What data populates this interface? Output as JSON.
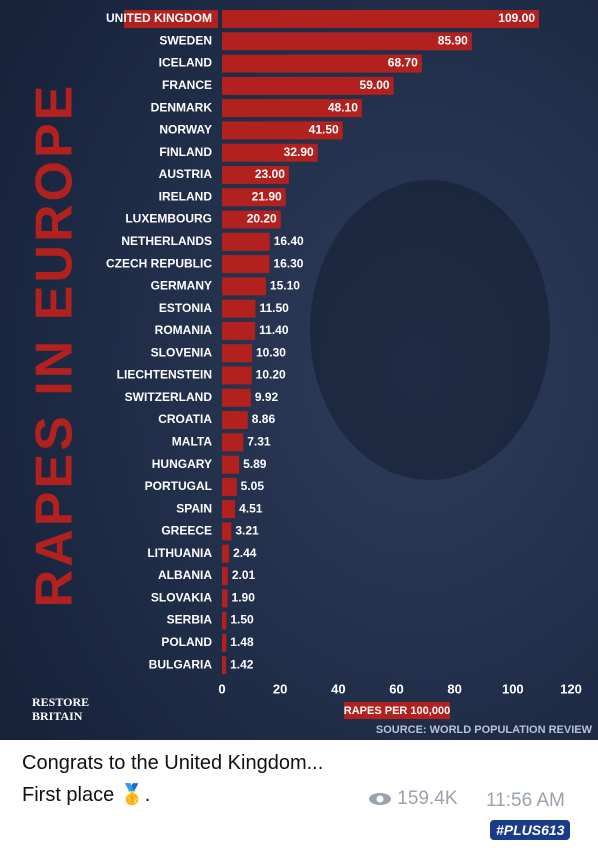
{
  "chart_data": {
    "type": "barh",
    "title": "RAPES IN EUROPE",
    "categories": [
      "UNITED KINGDOM",
      "SWEDEN",
      "ICELAND",
      "FRANCE",
      "DENMARK",
      "NORWAY",
      "FINLAND",
      "AUSTRIA",
      "IRELAND",
      "LUXEMBOURG",
      "NETHERLANDS",
      "CZECH REPUBLIC",
      "GERMANY",
      "ESTONIA",
      "ROMANIA",
      "SLOVENIA",
      "LIECHTENSTEIN",
      "SWITZERLAND",
      "CROATIA",
      "MALTA",
      "HUNGARY",
      "PORTUGAL",
      "SPAIN",
      "GREECE",
      "LITHUANIA",
      "ALBANIA",
      "SLOVAKIA",
      "SERBIA",
      "POLAND",
      "BULGARIA"
    ],
    "values": [
      109,
      85.9,
      68.7,
      59,
      48.1,
      41.5,
      32.9,
      23,
      21.9,
      20.2,
      16.4,
      16.3,
      15.1,
      11.5,
      11.4,
      10.3,
      10.2,
      9.92,
      8.86,
      7.31,
      5.89,
      5.05,
      4.51,
      3.21,
      2.44,
      2.01,
      1.9,
      1.5,
      1.48,
      1.42
    ],
    "value_labels": [
      "109.00",
      "85.90",
      "68.70",
      "59.00",
      "48.10",
      "41.50",
      "32.90",
      "23.00",
      "21.90",
      "20.20",
      "16.40",
      "16.30",
      "15.10",
      "11.50",
      "11.40",
      "10.30",
      "10.20",
      "9.92",
      "8.86",
      "7.31",
      "5.89",
      "5.05",
      "4.51",
      "3.21",
      "2.44",
      "2.01",
      "1.90",
      "1.50",
      "1.48",
      "1.42"
    ],
    "color": "#b3211f",
    "xlim": [
      0,
      120
    ],
    "xticks": [
      0,
      20,
      40,
      60,
      80,
      100,
      120
    ],
    "xlabel": "RAPES PER 100,000",
    "source": "SOURCE: WORLD POPULATION REVIEW",
    "logo": [
      "RESTORE",
      "BRITAIN"
    ]
  },
  "post": {
    "caption": [
      "Congrats to the United Kingdom...",
      "First place 🥇."
    ],
    "views": "159.4K",
    "time": "11:56 AM",
    "watermark": "#PLUS613"
  }
}
